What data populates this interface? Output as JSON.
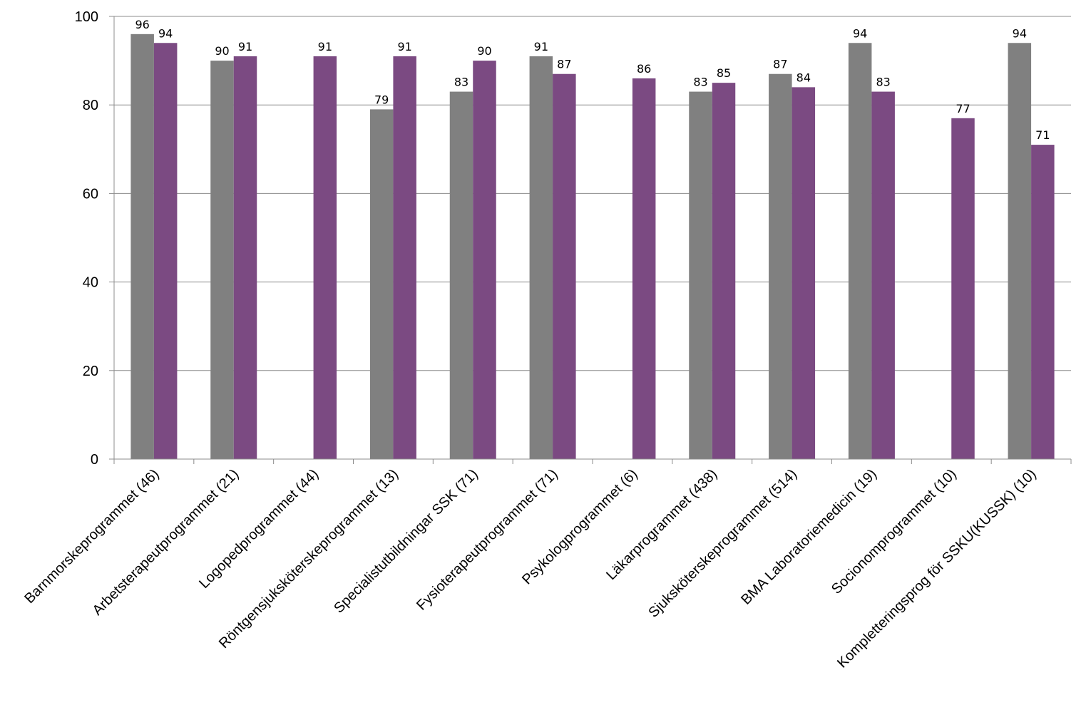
{
  "chart_data": {
    "type": "bar",
    "title": "",
    "xlabel": "",
    "ylabel": "",
    "ylim": [
      0,
      100
    ],
    "yticks": [
      0,
      20,
      40,
      60,
      80,
      100
    ],
    "grid": true,
    "legend": "none",
    "categories": [
      "Barnmorskeprogrammet (46)",
      "Arbetsterapeutprogrammet (21)",
      "Logopedprogrammet (44)",
      "Röntgensjuksköterskeprogrammet (13)",
      "Specialistutbildningar SSK (71)",
      "Fysioterapeutprogrammet (71)",
      "Psykologprogrammet (6)",
      "Läkarprogrammet (438)",
      "Sjuksköterskeprogrammet (514)",
      "BMA Laboratoriemedicin (19)",
      "Socionomprogrammet (10)",
      "Kompletteringsprog för SSKU(KUSSK) (10)"
    ],
    "series": [
      {
        "color": "#808080",
        "values": [
          96,
          90,
          null,
          79,
          83,
          91,
          null,
          83,
          87,
          94,
          null,
          94
        ]
      },
      {
        "color": "#7B4A82",
        "values": [
          94,
          91,
          91,
          91,
          90,
          87,
          86,
          85,
          84,
          83,
          77,
          71
        ]
      }
    ]
  }
}
